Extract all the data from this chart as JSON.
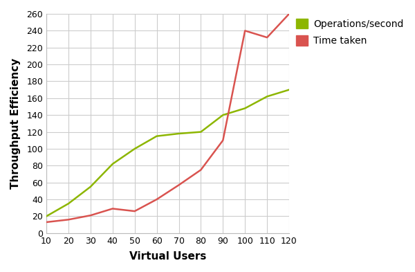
{
  "x": [
    10,
    20,
    30,
    40,
    50,
    60,
    70,
    80,
    90,
    100,
    110,
    120
  ],
  "ops_per_second": [
    20,
    35,
    55,
    82,
    100,
    115,
    118,
    120,
    140,
    148,
    162,
    170
  ],
  "time_taken": [
    13,
    16,
    21,
    29,
    26,
    40,
    57,
    75,
    110,
    240,
    232,
    260
  ],
  "ops_color": "#8db600",
  "time_color": "#d9534f",
  "xlabel": "Virtual Users",
  "ylabel": "Throughput Efficiency",
  "legend_ops": "Operations/second",
  "legend_time": "Time taken",
  "xlim": [
    10,
    120
  ],
  "ylim": [
    0,
    260
  ],
  "yticks": [
    0,
    20,
    40,
    60,
    80,
    100,
    120,
    140,
    160,
    180,
    200,
    220,
    240,
    260
  ],
  "xticks": [
    10,
    20,
    30,
    40,
    50,
    60,
    70,
    80,
    90,
    100,
    110,
    120
  ],
  "background_color": "#ffffff",
  "grid_color": "#cccccc",
  "line_width": 1.8,
  "xlabel_fontsize": 11,
  "ylabel_fontsize": 11,
  "legend_fontsize": 10,
  "tick_fontsize": 9
}
